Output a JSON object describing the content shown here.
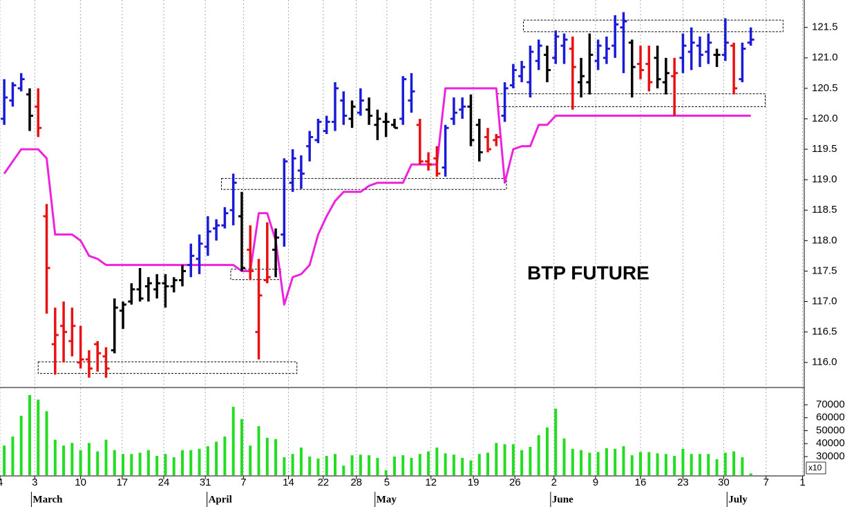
{
  "chart_data": [
    {
      "type": "ohlc",
      "title": "BTP FUTURE",
      "x": [
        0,
        1,
        2,
        3,
        4,
        5,
        6,
        7,
        8,
        9,
        10,
        11,
        12,
        13,
        14,
        15,
        16,
        17,
        18,
        19,
        20,
        21,
        22,
        23,
        24,
        25,
        26,
        27,
        28,
        29,
        30,
        31,
        32,
        33,
        34,
        35,
        36,
        37,
        38,
        39,
        40,
        41,
        42,
        43,
        44,
        45,
        46,
        47,
        48,
        49,
        50,
        51,
        52,
        53,
        54,
        55,
        56,
        57,
        58,
        59,
        60,
        61,
        62,
        63,
        64,
        65,
        66,
        67,
        68,
        69,
        70,
        71,
        72,
        73,
        74,
        75,
        76,
        77,
        78,
        79,
        80,
        81,
        82,
        83,
        84,
        85,
        86,
        87,
        88
      ],
      "open": [
        120.0,
        120.3,
        120.5,
        120.4,
        120.2,
        118.4,
        116.3,
        116.6,
        116.35,
        116.0,
        116.05,
        116.3,
        116.1,
        116.2,
        116.85,
        117.0,
        117.2,
        117.25,
        117.2,
        117.3,
        117.25,
        117.35,
        117.6,
        117.7,
        117.9,
        118.2,
        118.25,
        118.5,
        118.4,
        117.85,
        116.5,
        117.35,
        117.85,
        118.1,
        118.95,
        119.15,
        119.55,
        119.65,
        119.8,
        119.95,
        120.3,
        120.0,
        120.1,
        120.15,
        119.9,
        119.95,
        119.9,
        120.0,
        120.3,
        119.9,
        119.3,
        119.35,
        119.2,
        120.0,
        120.15,
        120.2,
        119.9,
        119.7,
        119.65,
        120.05,
        120.55,
        120.7,
        120.6,
        120.95,
        121.05,
        121.0,
        121.2,
        121.15,
        120.6,
        120.6,
        120.95,
        121.0,
        121.2,
        121.5,
        121.25,
        120.9,
        120.9,
        121.0,
        120.6,
        120.7,
        121.0,
        121.1,
        121.2,
        121.1,
        121.05,
        121.05,
        121.2,
        120.65,
        121.25
      ],
      "high": [
        120.65,
        120.6,
        120.75,
        120.5,
        120.5,
        118.6,
        116.9,
        117.0,
        116.9,
        116.6,
        116.2,
        116.35,
        116.25,
        117.05,
        117.0,
        117.3,
        117.55,
        117.4,
        117.45,
        117.45,
        117.4,
        117.6,
        117.95,
        118.1,
        118.4,
        118.35,
        118.55,
        119.1,
        118.8,
        118.25,
        117.7,
        118.3,
        118.2,
        119.35,
        119.5,
        119.4,
        119.8,
        120.0,
        120.05,
        120.6,
        120.45,
        120.3,
        120.5,
        120.35,
        120.15,
        120.1,
        120.0,
        120.7,
        120.75,
        120.0,
        119.45,
        119.55,
        119.9,
        120.35,
        120.35,
        120.4,
        120.0,
        119.85,
        119.75,
        120.6,
        120.9,
        120.95,
        121.2,
        121.3,
        121.2,
        121.45,
        121.4,
        121.35,
        121.0,
        121.4,
        121.3,
        121.35,
        121.7,
        121.75,
        121.3,
        121.2,
        121.2,
        121.2,
        121.0,
        121.0,
        121.4,
        121.5,
        121.35,
        121.4,
        121.15,
        121.65,
        121.25,
        121.25,
        121.5
      ],
      "low": [
        119.9,
        120.2,
        120.45,
        119.8,
        119.7,
        116.8,
        115.8,
        116.0,
        116.1,
        115.9,
        115.75,
        115.85,
        115.75,
        116.15,
        116.55,
        116.95,
        117.0,
        117.0,
        117.05,
        116.9,
        117.15,
        117.25,
        117.4,
        117.45,
        117.75,
        118.0,
        118.2,
        118.25,
        117.5,
        117.35,
        116.05,
        117.3,
        117.4,
        117.9,
        118.8,
        118.85,
        119.3,
        119.6,
        119.75,
        119.8,
        119.9,
        119.85,
        120.05,
        119.9,
        119.65,
        119.7,
        119.85,
        119.9,
        120.1,
        119.25,
        119.15,
        119.05,
        119.05,
        119.9,
        120.0,
        119.55,
        119.3,
        119.45,
        119.55,
        119.95,
        120.5,
        120.6,
        120.35,
        120.8,
        120.6,
        120.9,
        120.9,
        120.15,
        120.35,
        120.4,
        120.8,
        120.9,
        121.0,
        120.75,
        120.35,
        120.65,
        120.45,
        120.5,
        120.4,
        120.05,
        120.75,
        120.8,
        120.85,
        120.9,
        120.85,
        120.95,
        120.4,
        120.6,
        121.2
      ],
      "close": [
        120.35,
        120.55,
        120.65,
        120.05,
        119.85,
        117.55,
        116.45,
        116.5,
        116.6,
        116.05,
        115.9,
        116.15,
        115.9,
        116.9,
        116.95,
        117.2,
        117.05,
        117.3,
        117.3,
        117.25,
        117.35,
        117.5,
        117.75,
        117.95,
        118.15,
        118.25,
        118.45,
        118.95,
        117.55,
        117.5,
        117.1,
        117.4,
        118.05,
        119.3,
        119.35,
        119.1,
        119.7,
        119.95,
        119.95,
        120.5,
        120.05,
        120.2,
        120.3,
        120.05,
        120.0,
        119.95,
        119.85,
        120.65,
        120.45,
        119.3,
        119.25,
        119.1,
        119.85,
        120.1,
        120.2,
        119.65,
        119.45,
        119.5,
        119.7,
        120.5,
        120.8,
        120.85,
        121.1,
        121.2,
        120.8,
        121.35,
        121.3,
        120.85,
        120.7,
        121.05,
        121.2,
        121.15,
        121.55,
        121.6,
        120.85,
        120.8,
        120.6,
        120.65,
        120.75,
        120.75,
        121.2,
        121.25,
        121.05,
        121.25,
        121.05,
        121.25,
        120.5,
        121.15,
        121.3
      ],
      "colors": [
        "#1a1ad8",
        "#1a1ad8",
        "#1a1ad8",
        "#000000",
        "#e81010",
        "#e81010",
        "#e81010",
        "#e81010",
        "#e81010",
        "#e81010",
        "#e81010",
        "#e81010",
        "#e81010",
        "#000000",
        "#000000",
        "#000000",
        "#000000",
        "#000000",
        "#000000",
        "#000000",
        "#000000",
        "#000000",
        "#1a1ad8",
        "#1a1ad8",
        "#1a1ad8",
        "#1a1ad8",
        "#1a1ad8",
        "#1a1ad8",
        "#000000",
        "#e81010",
        "#e81010",
        "#e81010",
        "#000000",
        "#1a1ad8",
        "#1a1ad8",
        "#1a1ad8",
        "#1a1ad8",
        "#1a1ad8",
        "#1a1ad8",
        "#1a1ad8",
        "#1a1ad8",
        "#000000",
        "#1a1ad8",
        "#000000",
        "#000000",
        "#000000",
        "#000000",
        "#1a1ad8",
        "#1a1ad8",
        "#e81010",
        "#e81010",
        "#e81010",
        "#1a1ad8",
        "#1a1ad8",
        "#1a1ad8",
        "#000000",
        "#000000",
        "#e81010",
        "#e81010",
        "#1a1ad8",
        "#1a1ad8",
        "#1a1ad8",
        "#1a1ad8",
        "#1a1ad8",
        "#000000",
        "#1a1ad8",
        "#1a1ad8",
        "#e81010",
        "#000000",
        "#000000",
        "#1a1ad8",
        "#1a1ad8",
        "#1a1ad8",
        "#1a1ad8",
        "#000000",
        "#e81010",
        "#e81010",
        "#000000",
        "#000000",
        "#e81010",
        "#1a1ad8",
        "#1a1ad8",
        "#1a1ad8",
        "#1a1ad8",
        "#000000",
        "#1a1ad8",
        "#e81010",
        "#1a1ad8",
        "#1a1ad8"
      ],
      "line": {
        "color": "#ee22dd",
        "values": [
          119.1,
          119.3,
          119.5,
          119.5,
          119.5,
          119.35,
          118.1,
          118.1,
          118.1,
          118.0,
          117.75,
          117.7,
          117.6,
          117.6,
          117.6,
          117.6,
          117.6,
          117.6,
          117.6,
          117.6,
          117.6,
          117.6,
          117.6,
          117.6,
          117.6,
          117.6,
          117.6,
          117.6,
          117.5,
          117.5,
          118.45,
          118.45,
          118.0,
          116.95,
          117.4,
          117.45,
          117.6,
          118.1,
          118.4,
          118.65,
          118.8,
          118.8,
          118.8,
          118.9,
          118.95,
          118.95,
          118.95,
          118.95,
          119.25,
          119.25,
          119.25,
          119.25,
          120.5,
          120.5,
          120.5,
          120.5,
          120.5,
          120.5,
          120.5,
          118.95,
          119.5,
          119.55,
          119.55,
          119.9,
          119.9,
          120.05,
          120.05,
          120.05,
          120.05,
          120.05,
          120.05,
          120.05,
          120.05,
          120.05,
          120.05,
          120.05,
          120.05,
          120.05,
          120.05,
          120.05,
          120.05,
          120.05,
          120.05,
          120.05,
          120.05,
          120.05,
          120.05,
          120.05,
          120.05
        ]
      },
      "boxes": [
        {
          "x": [
            4.0,
            34.5
          ],
          "y": [
            115.82,
            116.01
          ]
        },
        {
          "x": [
            25.6,
            59.2
          ],
          "y": [
            118.84,
            119.02
          ]
        },
        {
          "x": [
            26.7,
            32.6
          ],
          "y": [
            117.36,
            117.53
          ]
        },
        {
          "x": [
            61.2,
            91.8
          ],
          "y": [
            121.43,
            121.62
          ]
        },
        {
          "x": [
            58.1,
            89.7
          ],
          "y": [
            120.2,
            120.41
          ]
        }
      ],
      "xlim": [
        -0.5,
        94.3
      ],
      "ylim": [
        115.6,
        121.95
      ],
      "yticks": [
        {
          "value": 116,
          "label": "116.0"
        },
        116.5,
        {
          "value": 117,
          "label": "117.0"
        },
        117.5,
        {
          "value": 118,
          "label": "118.0"
        },
        118.5,
        {
          "value": 119,
          "label": "119.0"
        },
        119.5,
        {
          "value": 120,
          "label": "120.0"
        },
        120.5,
        {
          "value": 121,
          "label": "121.0"
        },
        121.5
      ],
      "grid": true
    },
    {
      "type": "bar",
      "color": "#22dd22",
      "scale_label": "x10",
      "x": [
        0,
        1,
        2,
        3,
        4,
        5,
        6,
        7,
        8,
        9,
        10,
        11,
        12,
        13,
        14,
        15,
        16,
        17,
        18,
        19,
        20,
        21,
        22,
        23,
        24,
        25,
        26,
        27,
        28,
        29,
        30,
        31,
        32,
        33,
        34,
        35,
        36,
        37,
        38,
        39,
        40,
        41,
        42,
        43,
        44,
        45,
        46,
        47,
        48,
        49,
        50,
        51,
        52,
        53,
        54,
        55,
        56,
        57,
        58,
        59,
        60,
        61,
        62,
        63,
        64,
        65,
        66,
        67,
        68,
        69,
        70,
        71,
        72,
        73,
        74,
        75,
        76,
        77,
        78,
        79,
        80,
        81,
        82,
        83,
        84,
        85,
        86,
        87,
        88
      ],
      "values": [
        38500,
        45500,
        61500,
        77500,
        74000,
        65000,
        43000,
        38500,
        40500,
        35000,
        40500,
        34000,
        43000,
        35000,
        32000,
        32000,
        33000,
        35000,
        30500,
        32000,
        29500,
        35000,
        35000,
        36000,
        38000,
        41500,
        45500,
        68500,
        59000,
        38500,
        53500,
        44500,
        43500,
        29500,
        32000,
        37000,
        30000,
        28500,
        30500,
        32000,
        23000,
        31000,
        31500,
        31000,
        29000,
        19500,
        30000,
        31000,
        29000,
        32000,
        34000,
        37000,
        32500,
        31500,
        29000,
        27000,
        32000,
        33000,
        40500,
        39500,
        39500,
        35000,
        37500,
        46500,
        52500,
        67000,
        44000,
        36000,
        35000,
        33000,
        33500,
        36500,
        36000,
        38000,
        31000,
        33500,
        33500,
        32500,
        32000,
        30500,
        36000,
        32000,
        32000,
        32000,
        28000,
        33000,
        34000,
        29500,
        17000
      ],
      "xlim": [
        -0.5,
        94.3
      ],
      "ylim": [
        15600,
        82800
      ],
      "yticks": [
        30000,
        40000,
        50000,
        60000,
        70000
      ],
      "xticks": [
        {
          "value": -0.5,
          "label": "4"
        },
        {
          "value": 3.6,
          "label": "3"
        },
        {
          "value": 9.0,
          "label": "10"
        },
        {
          "value": 13.9,
          "label": "17"
        },
        {
          "value": 18.8,
          "label": "24"
        },
        {
          "value": 23.7,
          "label": "31"
        },
        {
          "value": 28.2,
          "label": "7"
        },
        {
          "value": 33.5,
          "label": "14"
        },
        {
          "value": 37.6,
          "label": "22"
        },
        {
          "value": 41.5,
          "label": "28"
        },
        {
          "value": 45.1,
          "label": "5"
        },
        {
          "value": 50.3,
          "label": "12"
        },
        {
          "value": 55.3,
          "label": "19"
        },
        {
          "value": 60.2,
          "label": "26"
        },
        {
          "value": 64.8,
          "label": "2"
        },
        {
          "value": 69.7,
          "label": "9"
        },
        {
          "value": 75.0,
          "label": "16"
        },
        {
          "value": 80.0,
          "label": "23"
        },
        {
          "value": 84.8,
          "label": "30"
        },
        {
          "value": 89.8,
          "label": "7"
        },
        {
          "value": 94.1,
          "label": "1"
        }
      ],
      "months": [
        {
          "value": 3.2,
          "label": "March"
        },
        {
          "value": 23.9,
          "label": "April"
        },
        {
          "value": 43.7,
          "label": "May"
        },
        {
          "value": 64.4,
          "label": "June"
        },
        {
          "value": 85.2,
          "label": "July"
        }
      ],
      "grid": true
    }
  ]
}
